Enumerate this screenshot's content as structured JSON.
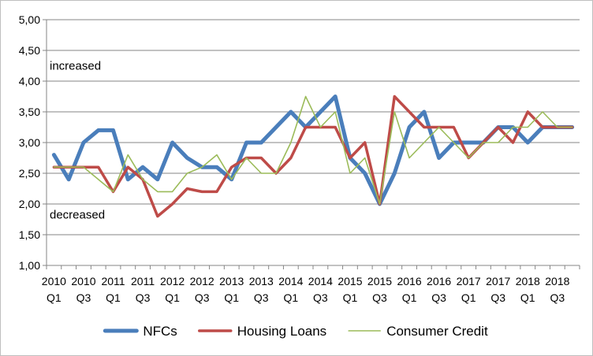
{
  "chart_data": {
    "type": "line",
    "title": "",
    "xlabel": "",
    "ylabel": "",
    "ylim": [
      1.0,
      5.0
    ],
    "yticks": [
      "1,00",
      "1,50",
      "2,00",
      "2,50",
      "3,00",
      "3,50",
      "4,00",
      "4,50",
      "5,00"
    ],
    "ytick_values": [
      1.0,
      1.5,
      2.0,
      2.5,
      3.0,
      3.5,
      4.0,
      4.5,
      5.0
    ],
    "grid": "horizontal",
    "legend_position": "bottom",
    "categories": [
      "2010 Q1",
      "2010 Q2",
      "2010 Q3",
      "2010 Q4",
      "2011 Q1",
      "2011 Q2",
      "2011 Q3",
      "2011 Q4",
      "2012 Q1",
      "2012 Q2",
      "2012 Q3",
      "2012 Q4",
      "2013 Q1",
      "2013 Q2",
      "2013 Q3",
      "2013 Q4",
      "2014 Q1",
      "2014 Q2",
      "2014 Q3",
      "2014 Q4",
      "2015 Q1",
      "2015 Q2",
      "2015 Q3",
      "2015 Q4",
      "2016 Q1",
      "2016 Q2",
      "2016 Q3",
      "2016 Q4",
      "2017 Q1",
      "2017 Q2",
      "2017 Q3",
      "2017 Q4",
      "2018 Q1",
      "2018 Q2",
      "2018 Q3",
      "2018 Q4"
    ],
    "x_tick_labels": [
      {
        "year": "2010",
        "q": "Q1"
      },
      {
        "year": "2010",
        "q": "Q3"
      },
      {
        "year": "2011",
        "q": "Q1"
      },
      {
        "year": "2011",
        "q": "Q3"
      },
      {
        "year": "2012",
        "q": "Q1"
      },
      {
        "year": "2012",
        "q": "Q3"
      },
      {
        "year": "2013",
        "q": "Q1"
      },
      {
        "year": "2013",
        "q": "Q3"
      },
      {
        "year": "2014",
        "q": "Q1"
      },
      {
        "year": "2014",
        "q": "Q3"
      },
      {
        "year": "2015",
        "q": "Q1"
      },
      {
        "year": "2015",
        "q": "Q3"
      },
      {
        "year": "2016",
        "q": "Q1"
      },
      {
        "year": "2016",
        "q": "Q3"
      },
      {
        "year": "2017",
        "q": "Q1"
      },
      {
        "year": "2017",
        "q": "Q3"
      },
      {
        "year": "2018",
        "q": "Q1"
      },
      {
        "year": "2018",
        "q": "Q3"
      }
    ],
    "series": [
      {
        "name": "NFCs",
        "color": "#4a7ebb",
        "values": [
          2.8,
          2.4,
          3.0,
          3.2,
          3.2,
          2.4,
          2.6,
          2.4,
          3.0,
          2.75,
          2.6,
          2.6,
          2.4,
          3.0,
          3.0,
          3.25,
          3.5,
          3.25,
          3.5,
          3.75,
          2.75,
          2.5,
          2.0,
          2.5,
          3.25,
          3.5,
          2.75,
          3.0,
          3.0,
          3.0,
          3.25,
          3.25,
          3.0,
          3.25,
          3.25,
          3.25
        ]
      },
      {
        "name": "Housing Loans",
        "color": "#be4b48",
        "values": [
          2.6,
          2.6,
          2.6,
          2.6,
          2.2,
          2.6,
          2.4,
          1.8,
          2.0,
          2.25,
          2.2,
          2.2,
          2.6,
          2.75,
          2.75,
          2.5,
          2.75,
          3.25,
          3.25,
          3.25,
          2.75,
          3.0,
          2.0,
          3.75,
          3.5,
          3.25,
          3.25,
          3.25,
          2.75,
          3.0,
          3.25,
          3.0,
          3.5,
          3.25,
          3.25,
          3.25
        ]
      },
      {
        "name": "Consumer Credit",
        "color": "#9bbb59",
        "values": [
          2.6,
          2.6,
          2.6,
          2.4,
          2.2,
          2.8,
          2.4,
          2.2,
          2.2,
          2.5,
          2.6,
          2.8,
          2.4,
          2.75,
          2.5,
          2.5,
          3.0,
          3.75,
          3.25,
          3.5,
          2.5,
          2.75,
          2.0,
          3.5,
          2.75,
          3.0,
          3.25,
          3.0,
          2.75,
          3.0,
          3.0,
          3.25,
          3.25,
          3.5,
          3.25,
          3.25
        ]
      }
    ],
    "annotations": [
      {
        "text": "increased",
        "y": 4.25
      },
      {
        "text": "decreased",
        "y": 1.83
      }
    ]
  }
}
